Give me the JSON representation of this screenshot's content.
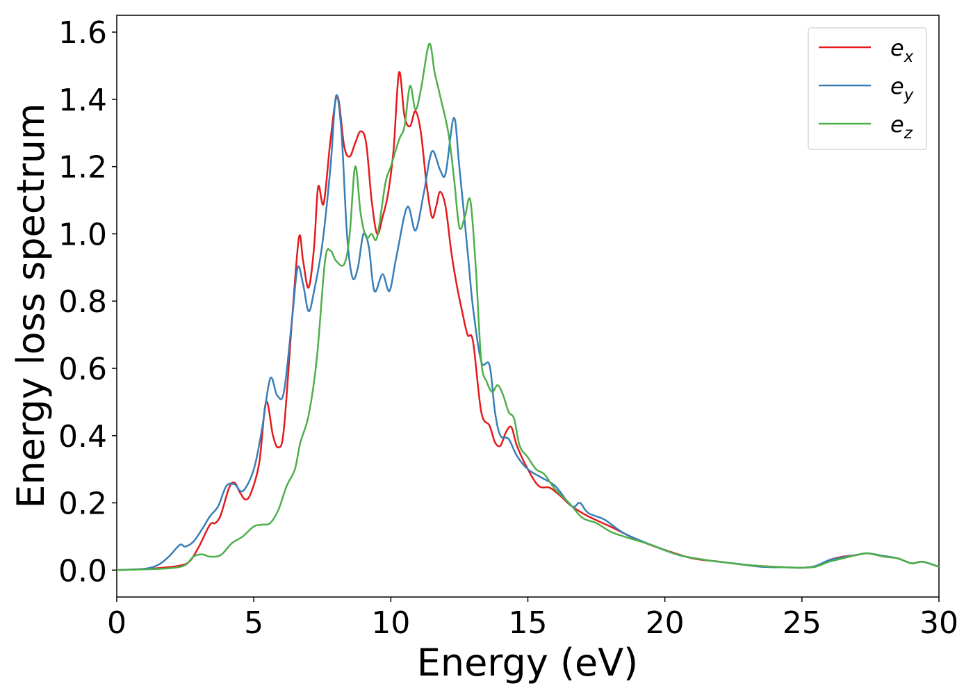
{
  "chart_data": {
    "type": "line",
    "title": "",
    "xlabel": "Energy (eV)",
    "ylabel": "Energy loss spectrum",
    "xlim": [
      0,
      30
    ],
    "ylim": [
      -0.08,
      1.65
    ],
    "xticks": [
      0,
      5,
      10,
      15,
      20,
      25,
      30
    ],
    "yticks": [
      0.0,
      0.2,
      0.4,
      0.6,
      0.8,
      1.0,
      1.2,
      1.4,
      1.6
    ],
    "grid": false,
    "legend_position": "top-right",
    "series": [
      {
        "name": "e_x",
        "legend_base": "e",
        "legend_sub": "x",
        "color": "#e41a1c",
        "points": [
          [
            0,
            0.0
          ],
          [
            1,
            0.003
          ],
          [
            1.8,
            0.008
          ],
          [
            2.4,
            0.015
          ],
          [
            2.7,
            0.03
          ],
          [
            3.0,
            0.07
          ],
          [
            3.4,
            0.135
          ],
          [
            3.6,
            0.14
          ],
          [
            3.8,
            0.165
          ],
          [
            4.1,
            0.245
          ],
          [
            4.3,
            0.26
          ],
          [
            4.5,
            0.23
          ],
          [
            4.7,
            0.21
          ],
          [
            4.9,
            0.23
          ],
          [
            5.2,
            0.32
          ],
          [
            5.45,
            0.5
          ],
          [
            5.7,
            0.4
          ],
          [
            5.9,
            0.365
          ],
          [
            6.1,
            0.42
          ],
          [
            6.4,
            0.75
          ],
          [
            6.65,
            0.99
          ],
          [
            6.8,
            0.92
          ],
          [
            7.0,
            0.84
          ],
          [
            7.2,
            0.96
          ],
          [
            7.35,
            1.14
          ],
          [
            7.55,
            1.09
          ],
          [
            7.8,
            1.28
          ],
          [
            8.05,
            1.41
          ],
          [
            8.3,
            1.26
          ],
          [
            8.5,
            1.23
          ],
          [
            8.7,
            1.27
          ],
          [
            8.9,
            1.305
          ],
          [
            9.1,
            1.27
          ],
          [
            9.3,
            1.1
          ],
          [
            9.5,
            1.0
          ],
          [
            9.7,
            1.05
          ],
          [
            9.9,
            1.12
          ],
          [
            10.1,
            1.25
          ],
          [
            10.3,
            1.48
          ],
          [
            10.5,
            1.35
          ],
          [
            10.7,
            1.32
          ],
          [
            10.9,
            1.365
          ],
          [
            11.1,
            1.3
          ],
          [
            11.3,
            1.15
          ],
          [
            11.5,
            1.05
          ],
          [
            11.65,
            1.08
          ],
          [
            11.8,
            1.125
          ],
          [
            12.0,
            1.08
          ],
          [
            12.2,
            0.95
          ],
          [
            12.4,
            0.85
          ],
          [
            12.6,
            0.77
          ],
          [
            12.8,
            0.7
          ],
          [
            13.0,
            0.68
          ],
          [
            13.3,
            0.47
          ],
          [
            13.6,
            0.43
          ],
          [
            13.8,
            0.38
          ],
          [
            14.0,
            0.37
          ],
          [
            14.2,
            0.41
          ],
          [
            14.4,
            0.425
          ],
          [
            14.6,
            0.37
          ],
          [
            15.0,
            0.3
          ],
          [
            15.4,
            0.25
          ],
          [
            15.8,
            0.245
          ],
          [
            16.2,
            0.22
          ],
          [
            16.6,
            0.19
          ],
          [
            17.2,
            0.16
          ],
          [
            18.0,
            0.13
          ],
          [
            19.0,
            0.09
          ],
          [
            20.0,
            0.06
          ],
          [
            21.0,
            0.035
          ],
          [
            22.0,
            0.025
          ],
          [
            23.0,
            0.015
          ],
          [
            24.0,
            0.01
          ],
          [
            25.0,
            0.007
          ],
          [
            25.5,
            0.012
          ],
          [
            26.0,
            0.03
          ],
          [
            26.5,
            0.04
          ],
          [
            27.0,
            0.045
          ],
          [
            27.4,
            0.05
          ],
          [
            28.0,
            0.04
          ],
          [
            28.5,
            0.035
          ],
          [
            29.0,
            0.02
          ],
          [
            29.4,
            0.025
          ],
          [
            30.0,
            0.01
          ]
        ]
      },
      {
        "name": "e_y",
        "legend_base": "e",
        "legend_sub": "y",
        "color": "#377eb8",
        "points": [
          [
            0,
            0.0
          ],
          [
            1,
            0.004
          ],
          [
            1.5,
            0.015
          ],
          [
            1.9,
            0.04
          ],
          [
            2.3,
            0.075
          ],
          [
            2.5,
            0.07
          ],
          [
            2.8,
            0.085
          ],
          [
            3.1,
            0.12
          ],
          [
            3.4,
            0.16
          ],
          [
            3.7,
            0.19
          ],
          [
            4.0,
            0.25
          ],
          [
            4.3,
            0.255
          ],
          [
            4.6,
            0.235
          ],
          [
            5.0,
            0.3
          ],
          [
            5.3,
            0.42
          ],
          [
            5.6,
            0.57
          ],
          [
            5.85,
            0.52
          ],
          [
            6.1,
            0.53
          ],
          [
            6.4,
            0.75
          ],
          [
            6.6,
            0.9
          ],
          [
            6.8,
            0.85
          ],
          [
            7.0,
            0.77
          ],
          [
            7.2,
            0.83
          ],
          [
            7.5,
            0.97
          ],
          [
            7.8,
            1.2
          ],
          [
            8.0,
            1.41
          ],
          [
            8.2,
            1.3
          ],
          [
            8.4,
            1.0
          ],
          [
            8.6,
            0.87
          ],
          [
            8.8,
            0.9
          ],
          [
            9.0,
            1.0
          ],
          [
            9.2,
            0.96
          ],
          [
            9.4,
            0.83
          ],
          [
            9.7,
            0.88
          ],
          [
            9.95,
            0.83
          ],
          [
            10.2,
            0.93
          ],
          [
            10.6,
            1.08
          ],
          [
            10.9,
            1.01
          ],
          [
            11.2,
            1.12
          ],
          [
            11.5,
            1.245
          ],
          [
            11.8,
            1.19
          ],
          [
            12.0,
            1.18
          ],
          [
            12.3,
            1.345
          ],
          [
            12.5,
            1.2
          ],
          [
            12.8,
            0.95
          ],
          [
            13.0,
            0.78
          ],
          [
            13.3,
            0.62
          ],
          [
            13.6,
            0.61
          ],
          [
            13.8,
            0.47
          ],
          [
            14.0,
            0.4
          ],
          [
            14.3,
            0.39
          ],
          [
            14.6,
            0.34
          ],
          [
            15.0,
            0.3
          ],
          [
            15.5,
            0.275
          ],
          [
            16.0,
            0.25
          ],
          [
            16.6,
            0.19
          ],
          [
            16.9,
            0.2
          ],
          [
            17.2,
            0.17
          ],
          [
            17.8,
            0.15
          ],
          [
            18.5,
            0.11
          ],
          [
            19.5,
            0.075
          ],
          [
            20.5,
            0.045
          ],
          [
            21.5,
            0.03
          ],
          [
            22.5,
            0.02
          ],
          [
            23.5,
            0.01
          ],
          [
            24.5,
            0.008
          ],
          [
            25.0,
            0.007
          ],
          [
            25.5,
            0.012
          ],
          [
            26.0,
            0.03
          ],
          [
            26.5,
            0.038
          ],
          [
            27.0,
            0.045
          ],
          [
            27.4,
            0.05
          ],
          [
            28.0,
            0.042
          ],
          [
            28.5,
            0.035
          ],
          [
            29.0,
            0.02
          ],
          [
            29.4,
            0.025
          ],
          [
            30.0,
            0.01
          ]
        ]
      },
      {
        "name": "e_z",
        "legend_base": "e",
        "legend_sub": "z",
        "color": "#4daf4a",
        "points": [
          [
            0,
            0.0
          ],
          [
            1,
            0.002
          ],
          [
            2.0,
            0.006
          ],
          [
            2.5,
            0.015
          ],
          [
            2.8,
            0.04
          ],
          [
            3.1,
            0.047
          ],
          [
            3.4,
            0.04
          ],
          [
            3.8,
            0.045
          ],
          [
            4.2,
            0.08
          ],
          [
            4.6,
            0.1
          ],
          [
            5.0,
            0.13
          ],
          [
            5.3,
            0.135
          ],
          [
            5.6,
            0.14
          ],
          [
            5.9,
            0.18
          ],
          [
            6.2,
            0.25
          ],
          [
            6.5,
            0.3
          ],
          [
            6.7,
            0.38
          ],
          [
            7.0,
            0.46
          ],
          [
            7.3,
            0.63
          ],
          [
            7.6,
            0.92
          ],
          [
            7.8,
            0.95
          ],
          [
            8.0,
            0.92
          ],
          [
            8.3,
            0.91
          ],
          [
            8.5,
            1.0
          ],
          [
            8.7,
            1.2
          ],
          [
            8.9,
            1.06
          ],
          [
            9.1,
            0.99
          ],
          [
            9.3,
            1.0
          ],
          [
            9.5,
            0.99
          ],
          [
            9.8,
            1.15
          ],
          [
            10.0,
            1.2
          ],
          [
            10.3,
            1.28
          ],
          [
            10.5,
            1.32
          ],
          [
            10.7,
            1.44
          ],
          [
            10.9,
            1.37
          ],
          [
            11.1,
            1.43
          ],
          [
            11.4,
            1.565
          ],
          [
            11.6,
            1.48
          ],
          [
            11.8,
            1.41
          ],
          [
            12.1,
            1.3
          ],
          [
            12.3,
            1.17
          ],
          [
            12.5,
            1.02
          ],
          [
            12.7,
            1.05
          ],
          [
            12.9,
            1.1
          ],
          [
            13.1,
            0.9
          ],
          [
            13.3,
            0.62
          ],
          [
            13.5,
            0.56
          ],
          [
            13.7,
            0.53
          ],
          [
            13.9,
            0.55
          ],
          [
            14.1,
            0.52
          ],
          [
            14.3,
            0.47
          ],
          [
            14.5,
            0.45
          ],
          [
            14.7,
            0.37
          ],
          [
            15.0,
            0.335
          ],
          [
            15.3,
            0.3
          ],
          [
            15.6,
            0.285
          ],
          [
            16.0,
            0.24
          ],
          [
            16.5,
            0.2
          ],
          [
            17.0,
            0.155
          ],
          [
            17.5,
            0.14
          ],
          [
            18.0,
            0.115
          ],
          [
            18.5,
            0.1
          ],
          [
            19.5,
            0.075
          ],
          [
            20.5,
            0.045
          ],
          [
            21.5,
            0.03
          ],
          [
            22.5,
            0.02
          ],
          [
            23.5,
            0.012
          ],
          [
            24.5,
            0.008
          ],
          [
            25.0,
            0.007
          ],
          [
            25.5,
            0.01
          ],
          [
            26.0,
            0.025
          ],
          [
            26.5,
            0.035
          ],
          [
            27.0,
            0.045
          ],
          [
            27.4,
            0.05
          ],
          [
            28.0,
            0.04
          ],
          [
            28.5,
            0.035
          ],
          [
            29.0,
            0.02
          ],
          [
            29.4,
            0.025
          ],
          [
            30.0,
            0.01
          ]
        ]
      }
    ]
  }
}
